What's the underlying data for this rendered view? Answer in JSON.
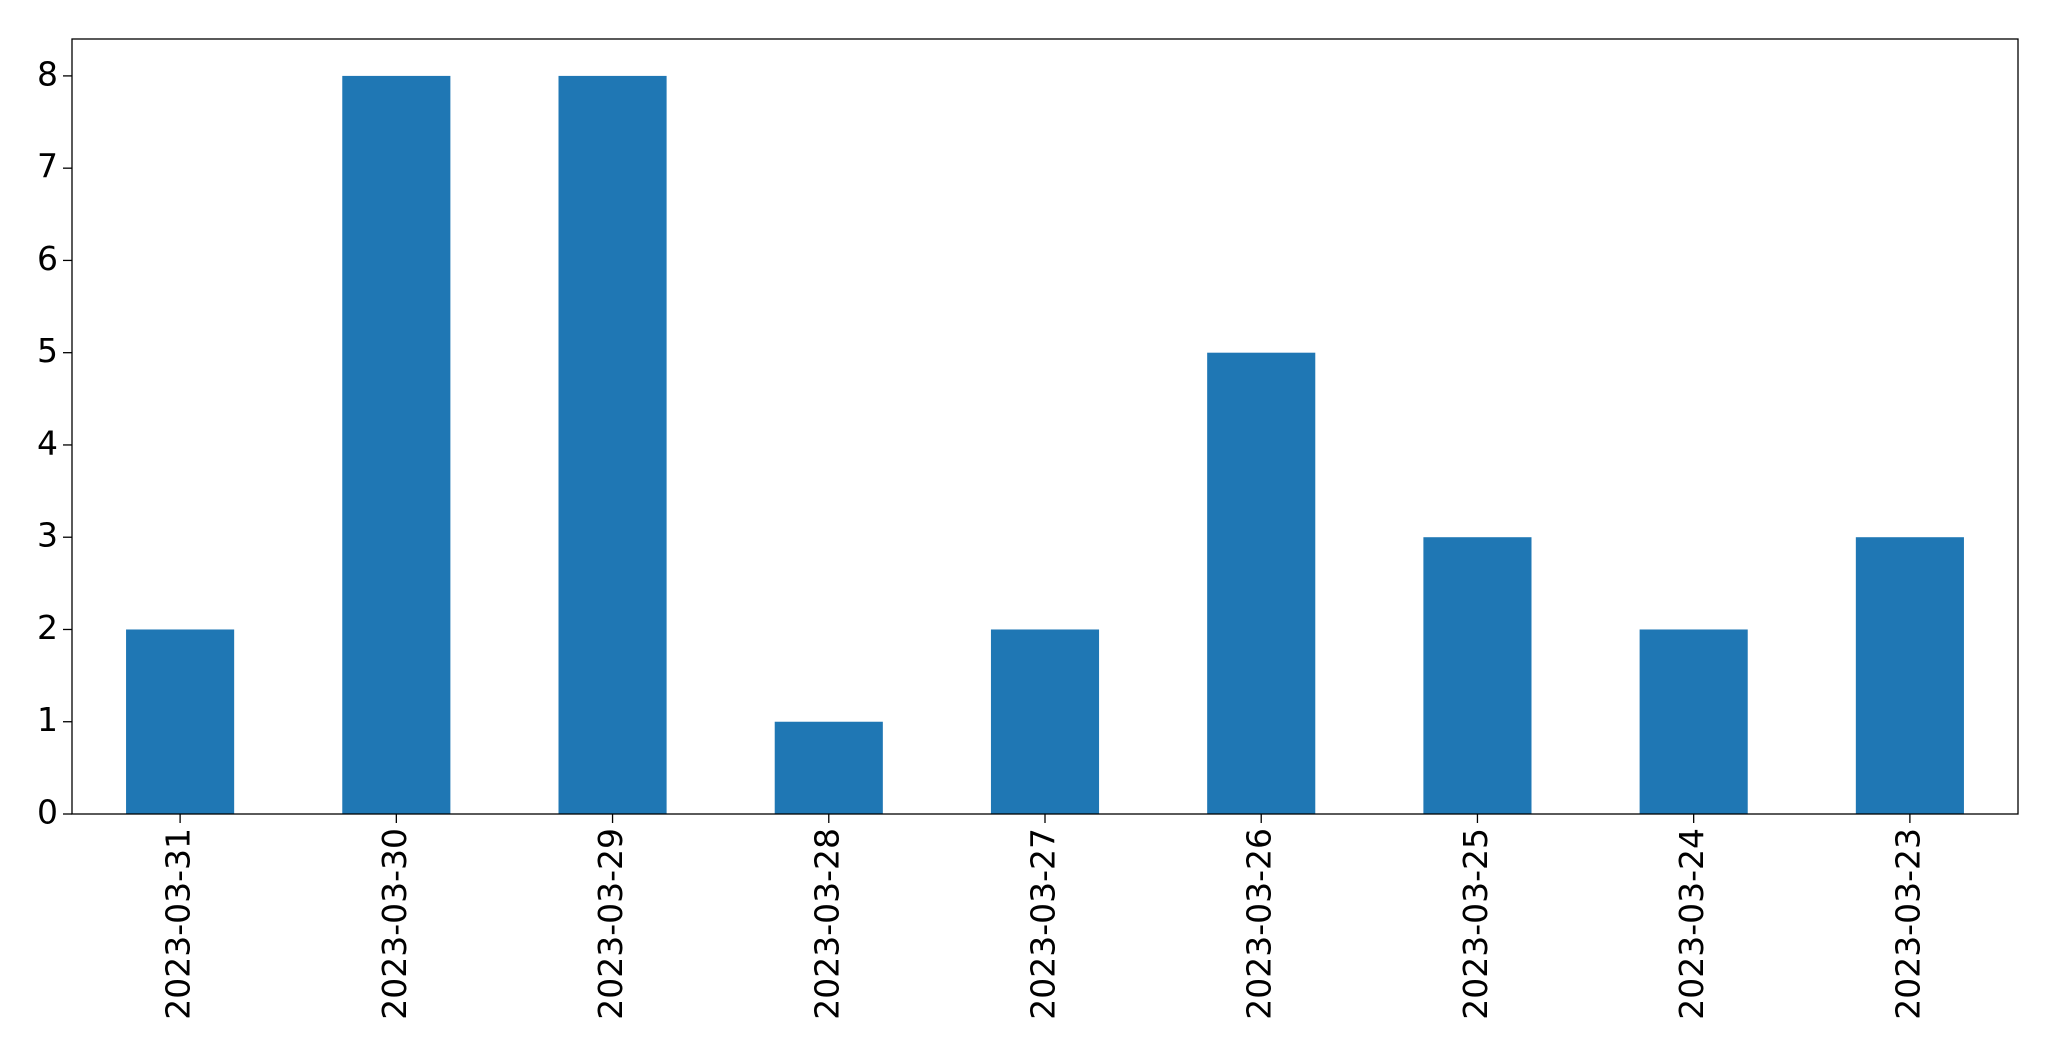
{
  "chart_data": {
    "type": "bar",
    "categories": [
      "2023-03-31",
      "2023-03-30",
      "2023-03-29",
      "2023-03-28",
      "2023-03-27",
      "2023-03-26",
      "2023-03-25",
      "2023-03-24",
      "2023-03-23"
    ],
    "values": [
      2,
      8,
      8,
      1,
      2,
      5,
      3,
      2,
      3
    ],
    "color": "#1f77b4",
    "ylim": [
      0,
      8.4
    ],
    "yticks": [
      0,
      1,
      2,
      3,
      4,
      5,
      6,
      7,
      8
    ],
    "grid": false
  }
}
